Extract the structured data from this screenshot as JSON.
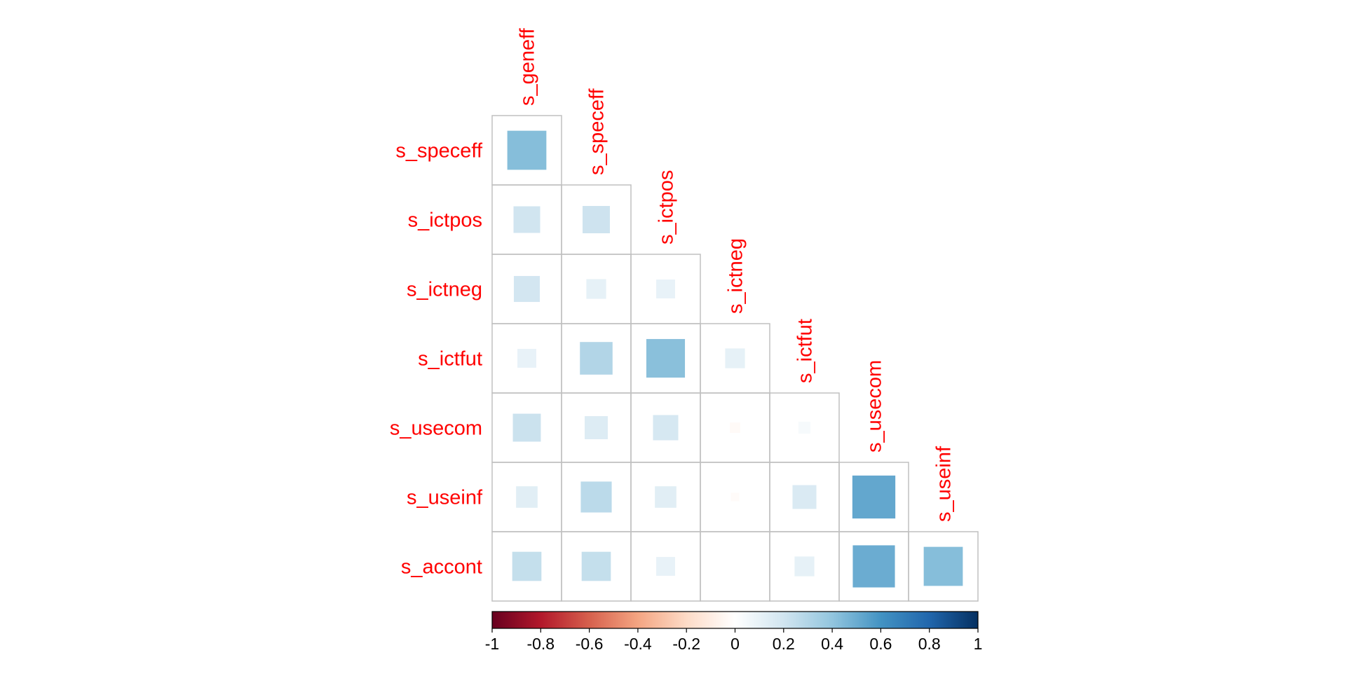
{
  "chart_data": {
    "type": "heatmap",
    "variables": [
      "s_geneff",
      "s_speceff",
      "s_ictpos",
      "s_ictneg",
      "s_ictfut",
      "s_usecom",
      "s_useinf",
      "s_accont"
    ],
    "row_labels": [
      "s_speceff",
      "s_ictpos",
      "s_ictneg",
      "s_ictfut",
      "s_usecom",
      "s_useinf",
      "s_accont"
    ],
    "col_labels": [
      "s_geneff",
      "s_speceff",
      "s_ictpos",
      "s_ictneg",
      "s_ictfut",
      "s_usecom",
      "s_useinf"
    ],
    "correlations": [
      [
        0.43
      ],
      [
        0.2,
        0.21
      ],
      [
        0.19,
        0.11,
        0.1
      ],
      [
        0.1,
        0.3,
        0.42,
        0.11
      ],
      [
        0.22,
        0.15,
        0.18,
        -0.03,
        0.04
      ],
      [
        0.13,
        0.27,
        0.13,
        -0.02,
        0.16,
        0.52
      ],
      [
        0.24,
        0.24,
        0.1,
        0.0,
        0.11,
        0.5,
        0.43
      ]
    ],
    "color_scale": {
      "range": [
        -1,
        1
      ],
      "ticks": [
        "-1",
        "-0.8",
        "-0.6",
        "-0.4",
        "-0.2",
        "0",
        "0.2",
        "0.4",
        "0.6",
        "0.8",
        "1"
      ],
      "stops": [
        "#67001f",
        "#b2182b",
        "#d6604d",
        "#f4a582",
        "#fddbc7",
        "#ffffff",
        "#d1e5f0",
        "#92c5de",
        "#4393c3",
        "#2166ac",
        "#053061"
      ]
    },
    "label_color": "#ff0000",
    "grid_color": "#c0c0c0",
    "method": "square",
    "layout": "lower triangle, diagonal omitted",
    "legend_position": "bottom"
  }
}
